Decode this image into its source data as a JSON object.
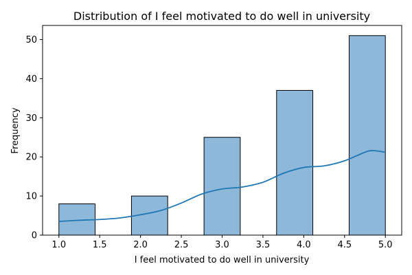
{
  "chart_data": {
    "type": "bar",
    "title": "Distribution of I feel motivated to do well in university",
    "xlabel": "I feel motivated to do well in university",
    "ylabel": "Frequency",
    "bins": [
      {
        "start": 1.0,
        "end": 1.444,
        "value": 8
      },
      {
        "start": 1.889,
        "end": 2.333,
        "value": 10
      },
      {
        "start": 2.778,
        "end": 3.222,
        "value": 25
      },
      {
        "start": 3.667,
        "end": 4.111,
        "value": 37
      },
      {
        "start": 4.556,
        "end": 5.0,
        "value": 51
      }
    ],
    "kde": {
      "x": [
        1.0,
        1.25,
        1.5,
        1.75,
        2.0,
        2.25,
        2.5,
        2.75,
        3.0,
        3.25,
        3.5,
        3.75,
        4.0,
        4.25,
        4.5,
        4.75,
        4.85,
        5.0
      ],
      "y": [
        3.5,
        3.8,
        4.0,
        4.4,
        5.2,
        6.3,
        8.2,
        10.5,
        11.8,
        12.3,
        13.5,
        15.8,
        17.3,
        17.7,
        19.0,
        21.2,
        21.6,
        21.2
      ]
    },
    "xlim": [
      0.8,
      5.2
    ],
    "ylim": [
      0,
      53.6
    ],
    "xticks": [
      "1.0",
      "1.5",
      "2.0",
      "2.5",
      "3.0",
      "3.5",
      "4.0",
      "4.5",
      "5.0"
    ],
    "yticks": [
      "0",
      "10",
      "20",
      "30",
      "40",
      "50"
    ],
    "grid": false,
    "colors": {
      "bar_fill": "#8db8da",
      "bar_edge": "#000000",
      "kde_line": "#1f77b4"
    }
  }
}
